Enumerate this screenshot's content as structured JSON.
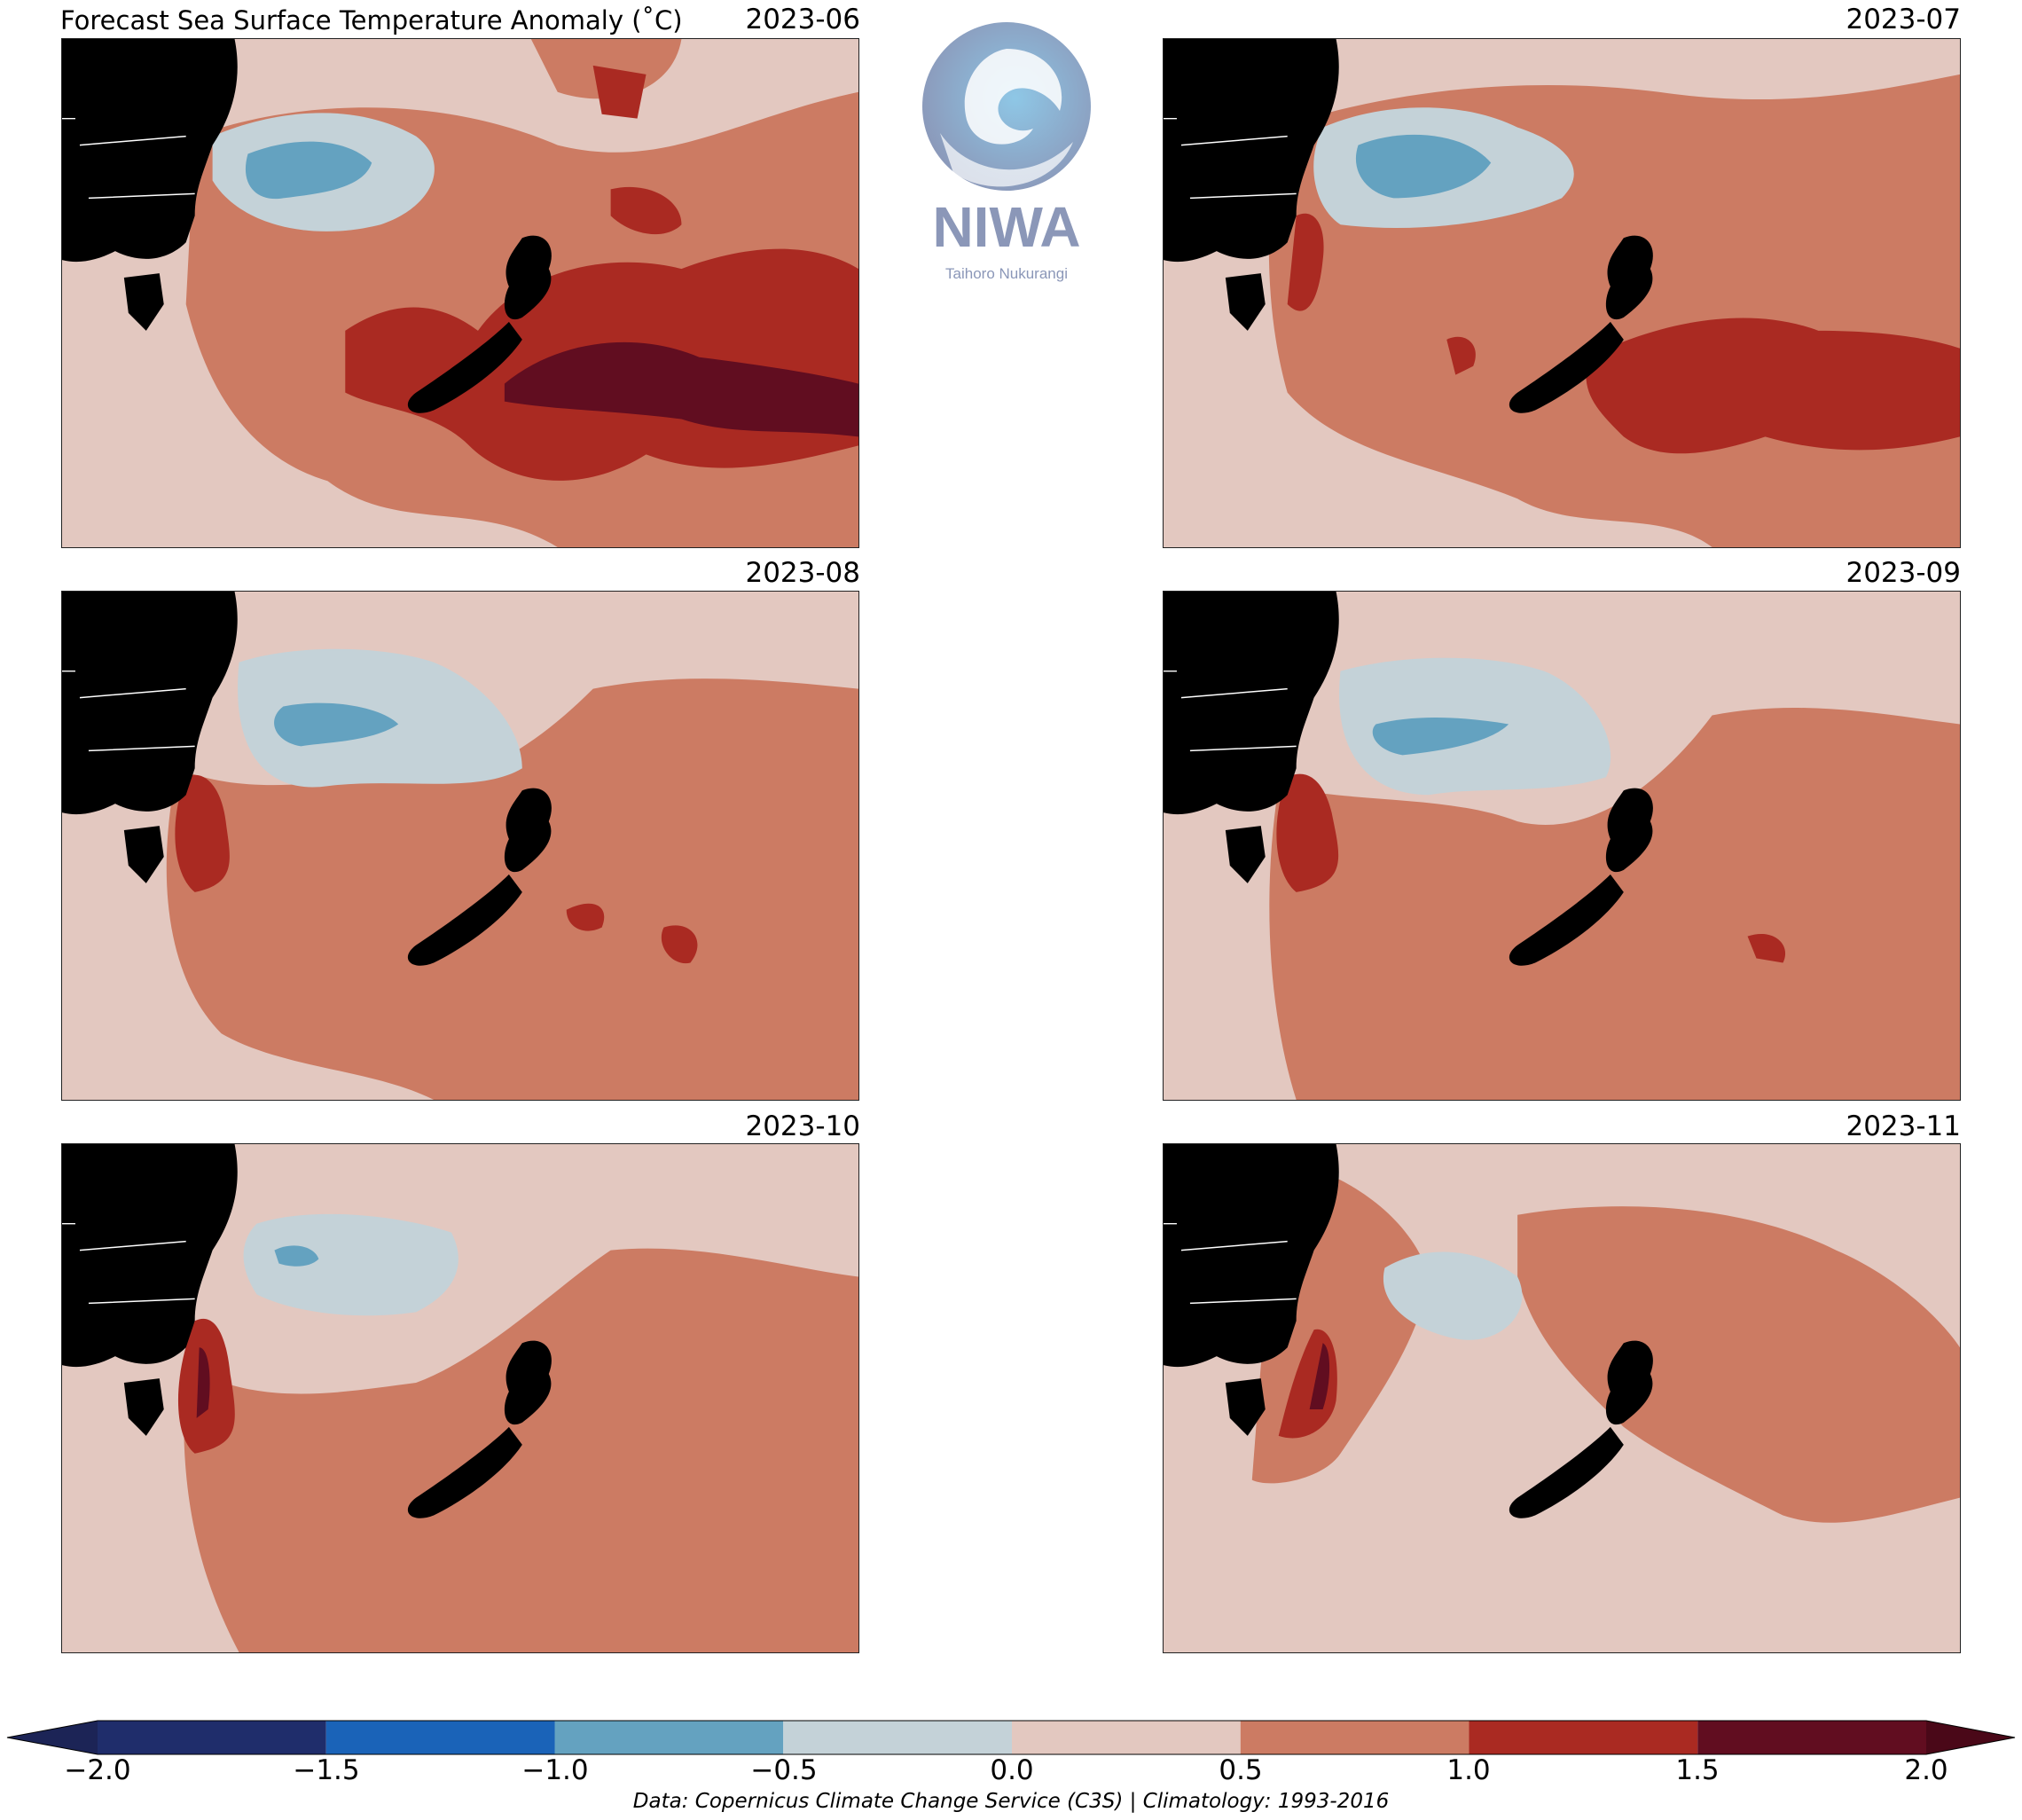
{
  "figure": {
    "title": "Forecast Sea Surface Temperature Anomaly (˚C)",
    "credit": "Data: Copernicus Climate Change Service (C3S) | Climatology: 1993-2016"
  },
  "logo": {
    "name": "NIWA",
    "tagline": "Taihoro Nukurangi",
    "color": "#8b97b8"
  },
  "panels": [
    {
      "label": "2023-06"
    },
    {
      "label": "2023-07"
    },
    {
      "label": "2023-08"
    },
    {
      "label": "2023-09"
    },
    {
      "label": "2023-10"
    },
    {
      "label": "2023-11"
    }
  ],
  "colorbar": {
    "ticks": [
      "−2.0",
      "−1.5",
      "−1.0",
      "−0.5",
      "0.0",
      "0.5",
      "1.0",
      "1.5",
      "2.0"
    ],
    "bins": [
      {
        "range": [
          -2.0,
          -1.5
        ],
        "color": "#1f2d6b"
      },
      {
        "range": [
          -1.5,
          -1.0
        ],
        "color": "#1a63b8"
      },
      {
        "range": [
          -1.0,
          -0.5
        ],
        "color": "#64a2c0"
      },
      {
        "range": [
          -0.5,
          0.0
        ],
        "color": "#c4d2d8"
      },
      {
        "range": [
          0.0,
          0.5
        ],
        "color": "#e3c8c0"
      },
      {
        "range": [
          0.5,
          1.0
        ],
        "color": "#cc7b63"
      },
      {
        "range": [
          1.0,
          1.5
        ],
        "color": "#aa2a22"
      },
      {
        "range": [
          1.5,
          2.0
        ],
        "color": "#610d20"
      }
    ],
    "extend_low_color": "#1c2456",
    "extend_high_color": "#4a0818"
  },
  "colors": {
    "land": "#000000",
    "border": "#ffffff"
  }
}
